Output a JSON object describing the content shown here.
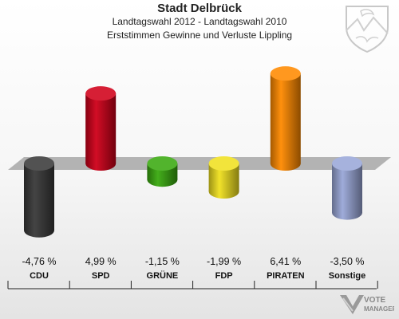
{
  "header": {
    "title": "Stadt Delbrück",
    "subtitle1": "Landtagswahl 2012 - Landtagswahl 2010",
    "subtitle2": "Erststimmen Gewinne und Verluste Lippling"
  },
  "chart_data": {
    "type": "bar",
    "title": "Stadt Delbrück",
    "categories": [
      "CDU",
      "SPD",
      "GRÜNE",
      "FDP",
      "PIRATEN",
      "Sonstige"
    ],
    "values": [
      -4.76,
      4.99,
      -1.15,
      -1.99,
      6.41,
      -3.5
    ],
    "value_labels": [
      "-4,76 %",
      "4,99 %",
      "-1,15 %",
      "-1,99 %",
      "6,41 %",
      "-3,50 %"
    ],
    "colors": [
      "#3a3a3a",
      "#d0001a",
      "#3aaa10",
      "#f0e020",
      "#ff8a00",
      "#9aa8d8"
    ],
    "unit": "%",
    "grid": false
  },
  "logo": {
    "line1": "VOTE",
    "line2": "MANAGER"
  }
}
